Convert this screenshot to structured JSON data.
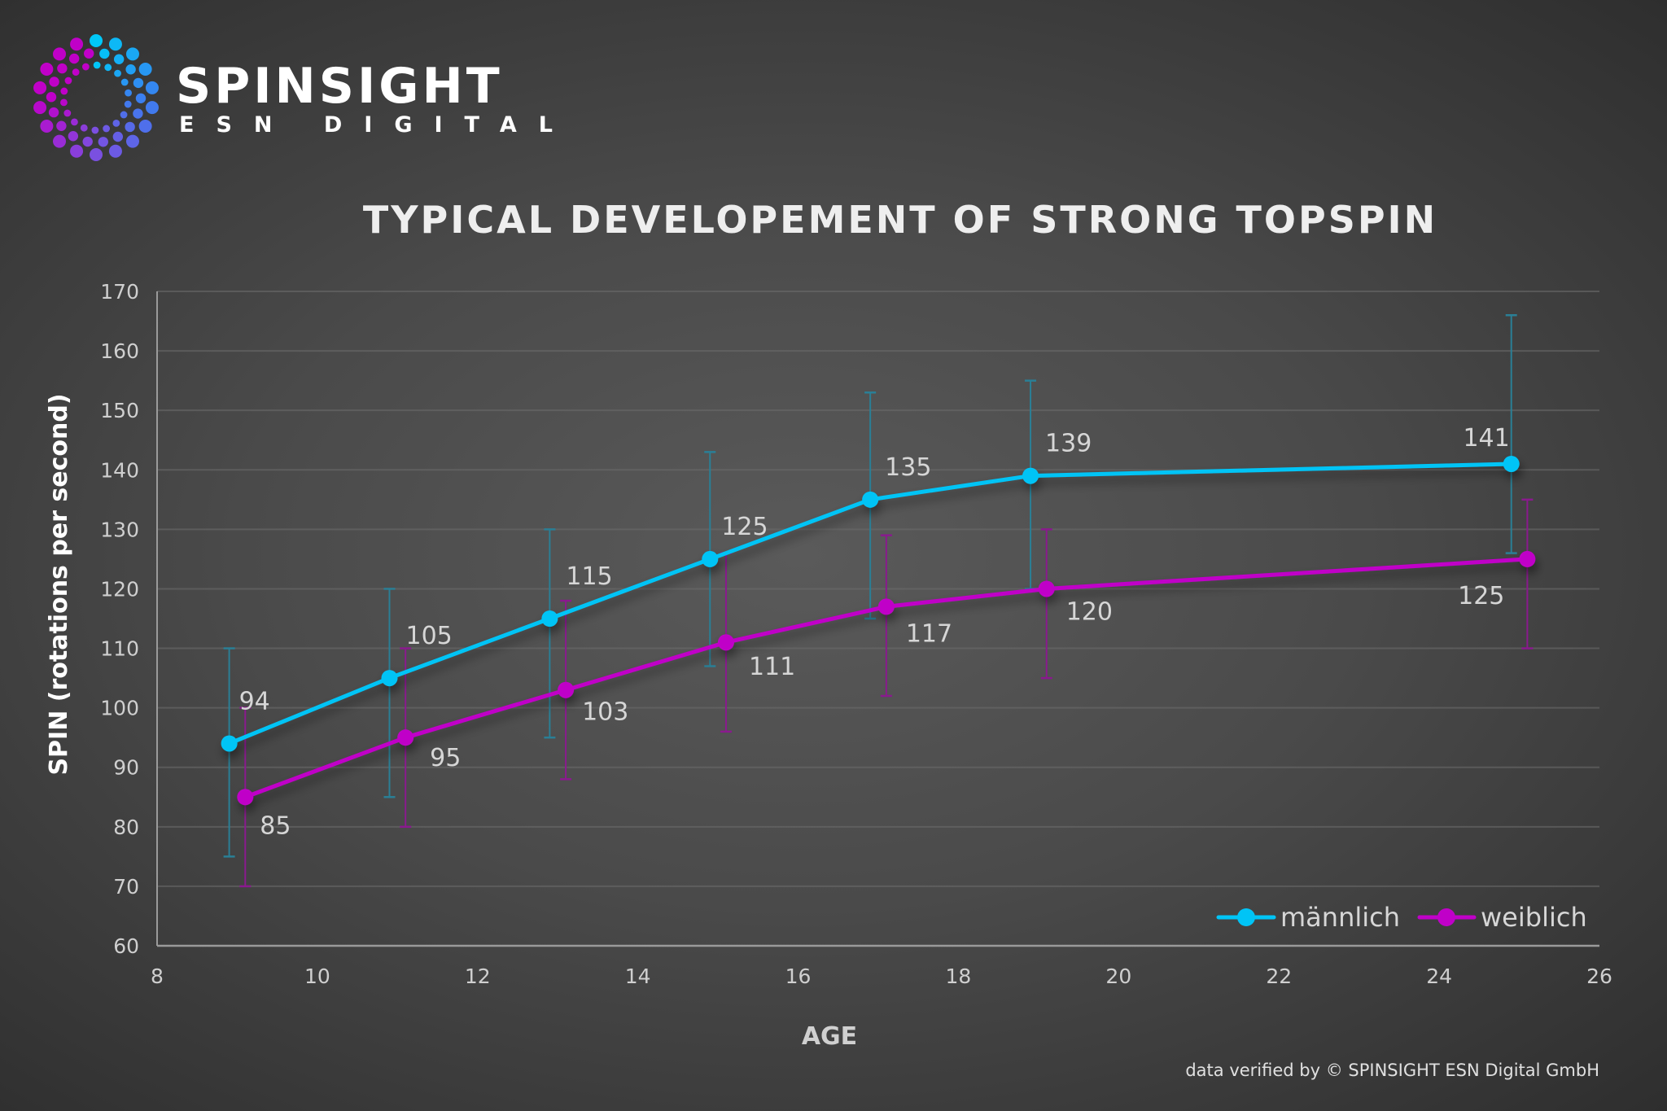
{
  "logo": {
    "name": "SPINSIGHT",
    "subtitle": "ESN DIGITAL",
    "icon": "dotted-spiral-logo-icon",
    "colors": [
      "#c000c8",
      "#00c8f8",
      "#3a7ff0",
      "#7a50e0"
    ]
  },
  "chart_data": {
    "type": "line",
    "title": "TYPICAL DEVELOPEMENT OF STRONG TOPSPIN",
    "xlabel": "AGE",
    "ylabel": "SPIN (rotations per second)",
    "xlim": [
      8,
      26
    ],
    "ylim": [
      60,
      170
    ],
    "xticks": [
      "8",
      "10",
      "12",
      "14",
      "16",
      "18",
      "20",
      "22",
      "24",
      "26"
    ],
    "yticks": [
      "60",
      "70",
      "80",
      "90",
      "100",
      "110",
      "120",
      "130",
      "140",
      "150",
      "160",
      "170"
    ],
    "grid": true,
    "legend_position": "bottom-right",
    "error_bars": true,
    "series": [
      {
        "name": "männlich",
        "color": "#00c4f6",
        "errorbar_color": "#2a7f96",
        "x": [
          8.9,
          10.9,
          12.9,
          14.9,
          16.9,
          18.9,
          24.9
        ],
        "y": [
          94,
          105,
          115,
          125,
          135,
          139,
          141
        ],
        "labels": [
          "94",
          "105",
          "115",
          "125",
          "135",
          "139",
          "141"
        ],
        "error_low": [
          75,
          85,
          95,
          107,
          115,
          120,
          126
        ],
        "error_high": [
          110,
          120,
          130,
          143,
          153,
          155,
          166
        ]
      },
      {
        "name": "weiblich",
        "color": "#c000c8",
        "errorbar_color": "#8a1a8e",
        "x": [
          9.1,
          11.1,
          13.1,
          15.1,
          17.1,
          19.1,
          25.1
        ],
        "y": [
          85,
          95,
          103,
          111,
          117,
          120,
          125
        ],
        "labels": [
          "85",
          "95",
          "103",
          "111",
          "117",
          "120",
          "125"
        ],
        "error_low": [
          70,
          80,
          88,
          96,
          102,
          105,
          110
        ],
        "error_high": [
          100,
          110,
          118,
          126,
          129,
          130,
          135
        ]
      }
    ]
  },
  "footer": "data verified by © SPINSIGHT ESN Digital GmbH"
}
